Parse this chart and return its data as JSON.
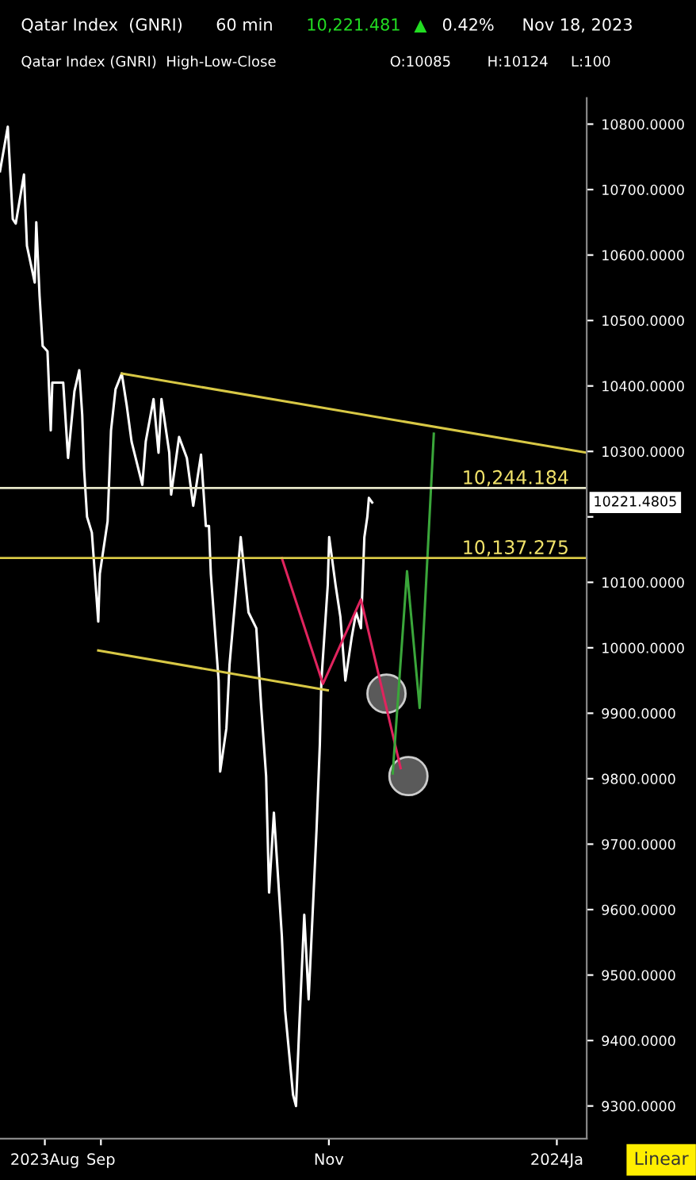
{
  "chart_data": {
    "type": "line",
    "title": "Qatar Index  (GNRI)",
    "annotations": [
      "60 min",
      "10,221.481",
      "▲",
      "0.42%",
      "Nov 18, 2023",
      "Qatar Index (GNRI)  High-Low-Close",
      "O:10085",
      "H:10124",
      "L:100",
      "Linear",
      "10221.4805"
    ],
    "xlim": [
      "2023-08-05",
      "2024-01-09"
    ],
    "xticks": [
      {
        "value": "2023-08-17",
        "label": "2023Aug"
      },
      {
        "value": "2023-09-01",
        "label": "Sep"
      },
      {
        "value": "2023-11-01",
        "label": "Nov"
      },
      {
        "value": "2024-01-01",
        "label": "2024Ja"
      }
    ],
    "ylim": [
      9250,
      10840
    ],
    "yticks": [
      {
        "value": 9300,
        "label": "9300.0000"
      },
      {
        "value": 9400,
        "label": "9400.0000"
      },
      {
        "value": 9500,
        "label": "9500.0000"
      },
      {
        "value": 9600,
        "label": "9600.0000"
      },
      {
        "value": 9700,
        "label": "9700.0000"
      },
      {
        "value": 9800,
        "label": "9800.0000"
      },
      {
        "value": 9900,
        "label": "9900.0000"
      },
      {
        "value": 10000,
        "label": "10000.0000"
      },
      {
        "value": 10100,
        "label": "10100.0000"
      },
      {
        "value": 10200,
        "label": null
      },
      {
        "value": 10300,
        "label": "10300.0000"
      },
      {
        "value": 10400,
        "label": "10400.0000"
      },
      {
        "value": 10500,
        "label": "10500.0000"
      },
      {
        "value": 10600,
        "label": "10600.0000"
      },
      {
        "value": 10700,
        "label": "10700.0000"
      },
      {
        "value": 10800,
        "label": "10800.0000"
      }
    ],
    "grid": false,
    "ref_lines": [
      {
        "axis": "y",
        "value": 10244.184,
        "label": "10,244.184",
        "color": "#e6e6c8"
      },
      {
        "axis": "y",
        "value": 10137.275,
        "label": "10,137.275",
        "color": "#d8c845"
      }
    ],
    "series": [
      {
        "color": "#ffffff",
        "x": [
          "2023-08-05T00:00",
          "2023-08-07T02:00",
          "2023-08-08T10:00",
          "2023-08-09T05:00",
          "2023-08-11T10:00",
          "2023-08-12T05:00",
          "2023-08-14T07:00",
          "2023-08-14T17:00",
          "2023-08-15T14:00",
          "2023-08-16T10:00",
          "2023-08-17T17:00",
          "2023-08-18T14:00",
          "2023-08-19T00:00",
          "2023-08-21T22:00",
          "2023-08-23T05:00",
          "2023-08-24T22:00",
          "2023-08-26T05:00",
          "2023-08-27T00:00",
          "2023-08-27T12:00",
          "2023-08-28T07:00",
          "2023-08-29T14:00",
          "2023-08-31T07:00",
          "2023-08-31T17:00",
          "2023-09-02T19:00",
          "2023-09-03T17:00",
          "2023-09-04T22:00",
          "2023-09-06T14:00",
          "2023-09-07T22:00",
          "2023-09-09T05:00",
          "2023-09-12T02:00",
          "2023-09-13T00:00",
          "2023-09-15T02:00",
          "2023-09-16T10:00",
          "2023-09-17T05:00",
          "2023-09-19T07:00",
          "2023-09-19T19:00",
          "2023-09-21T22:00",
          "2023-09-24T00:00",
          "2023-09-25T17:00",
          "2023-09-27T19:00",
          "2023-09-29T02:00",
          "2023-09-29T22:00",
          "2023-09-30T10:00",
          "2023-10-02T12:00",
          "2023-10-02T22:00",
          "2023-10-04T14:00",
          "2023-10-05T10:00",
          "2023-10-08T10:00",
          "2023-10-10T12:00",
          "2023-10-12T14:00",
          "2023-10-13T22:00",
          "2023-10-15T05:00",
          "2023-10-16T00:00",
          "2023-10-17T07:00",
          "2023-10-19T10:00",
          "2023-10-20T07:00",
          "2023-10-22T10:00",
          "2023-10-23T05:00",
          "2023-10-24T02:00",
          "2023-10-25T10:00",
          "2023-10-26T14:00",
          "2023-10-27T22:00",
          "2023-10-28T17:00",
          "2023-10-29T14:00",
          "2023-10-30T00:00",
          "2023-10-31T17:00",
          "2023-11-01T02:00",
          "2023-11-02T19:00",
          "2023-11-04T02:00",
          "2023-11-05T10:00",
          "2023-11-07T02:00",
          "2023-11-08T07:00",
          "2023-11-09T14:00",
          "2023-11-10T12:00",
          "2023-11-11T07:00",
          "2023-11-11T17:00",
          "2023-11-12T14:00"
        ],
        "values": [
          10728,
          10796,
          10655,
          10648,
          10723,
          10614,
          10558,
          10650,
          10538,
          10461,
          10453,
          10332,
          10405,
          10405,
          10290,
          10392,
          10424,
          10356,
          10273,
          10200,
          10176,
          10040,
          10113,
          10193,
          10332,
          10395,
          10419,
          10370,
          10315,
          10249,
          10315,
          10380,
          10298,
          10380,
          10298,
          10234,
          10322,
          10290,
          10217,
          10295,
          10186,
          10186,
          10113,
          9950,
          9811,
          9877,
          9974,
          10169,
          10054,
          10030,
          9908,
          9804,
          9626,
          9748,
          9560,
          9446,
          9317,
          9300,
          9422,
          9592,
          9463,
          9626,
          9723,
          9852,
          9950,
          10096,
          10169,
          10096,
          10047,
          9950,
          10015,
          10054,
          10030,
          10169,
          10200,
          10229,
          10222
        ]
      },
      {
        "type": "line",
        "color": "#d8c845",
        "x": [
          "2023-09-06T14:00",
          "2024-01-09"
        ],
        "values": [
          10419,
          10298
        ]
      },
      {
        "type": "line",
        "color": "#d8c845",
        "x": [
          "2023-08-31T07:00",
          "2023-10-31T17:00"
        ],
        "values": [
          9996,
          9935
        ]
      },
      {
        "type": "line",
        "color": "#e0245e",
        "x": [
          "2023-10-19T10:00",
          "2023-10-30T10:00",
          "2023-11-09T14:00",
          "2023-11-20T05:00"
        ],
        "values": [
          10137,
          9945,
          10074,
          9816
        ]
      },
      {
        "type": "line",
        "color": "#3aa63a",
        "x": [
          "2023-11-18T02:00",
          "2023-11-21T22:00",
          "2023-11-25T07:00",
          "2023-11-29T02:00"
        ],
        "values": [
          9808,
          10117,
          9908,
          10327
        ]
      },
      {
        "type": "scatter",
        "color": "#5a5a5a",
        "x": [
          "2023-11-16T10:00",
          "2023-11-22T07:00"
        ],
        "values": [
          9930,
          9804
        ]
      }
    ]
  }
}
